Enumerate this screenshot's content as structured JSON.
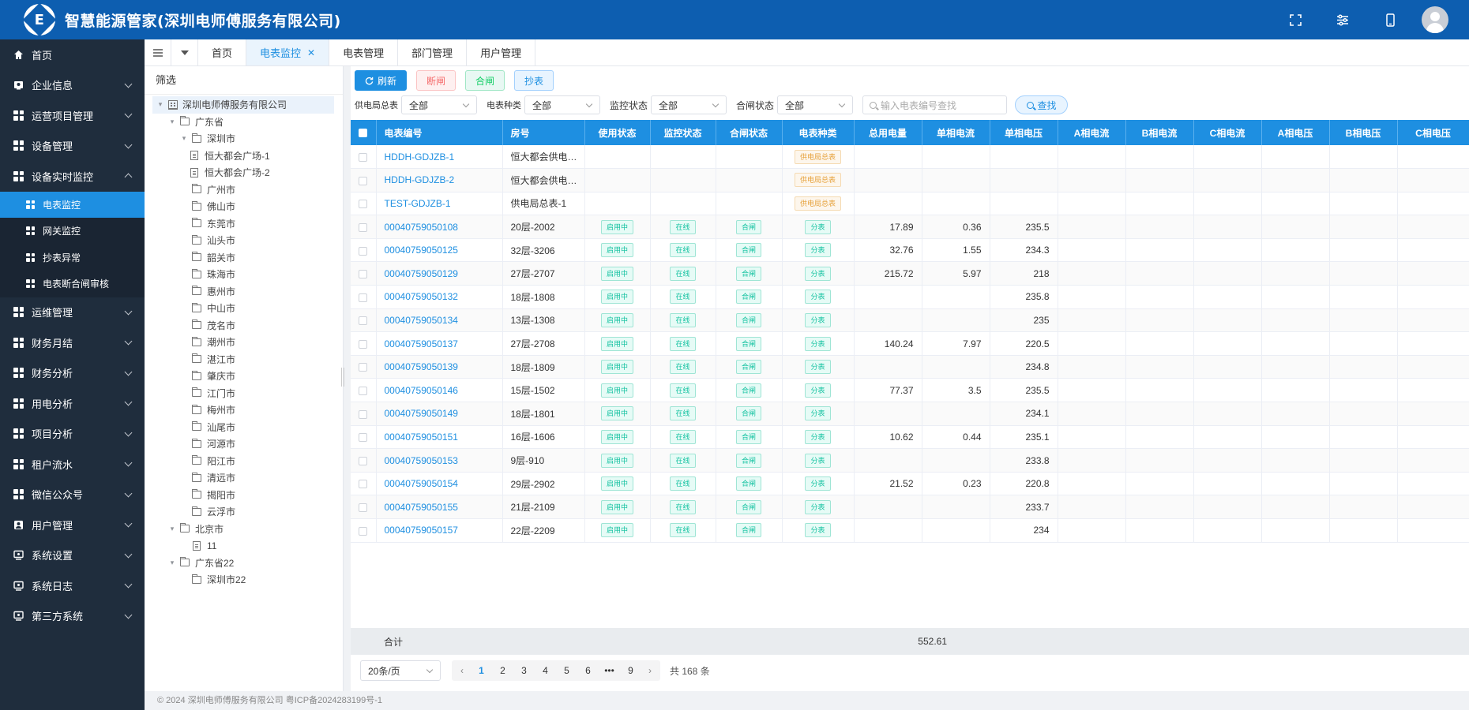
{
  "app": {
    "title": "智慧能源管家(深圳电师傅服务有限公司)",
    "logo_letter": "E"
  },
  "header_icons": [
    "fullscreen-icon",
    "settings-sliders-icon",
    "mobile-icon",
    "user-avatar"
  ],
  "sidebar": {
    "items": [
      {
        "label": "首页",
        "icon": "home-icon",
        "chevron": false
      },
      {
        "label": "企业信息",
        "icon": "building-icon",
        "chevron": true
      },
      {
        "label": "运营项目管理",
        "icon": "grid-icon",
        "chevron": true
      },
      {
        "label": "设备管理",
        "icon": "grid-icon",
        "chevron": true
      },
      {
        "label": "设备实时监控",
        "icon": "grid-icon",
        "chevron": true,
        "expanded": true
      },
      {
        "label": "运维管理",
        "icon": "grid-icon",
        "chevron": true
      },
      {
        "label": "财务月结",
        "icon": "grid-icon",
        "chevron": true
      },
      {
        "label": "财务分析",
        "icon": "grid-icon",
        "chevron": true
      },
      {
        "label": "用电分析",
        "icon": "grid-icon",
        "chevron": true
      },
      {
        "label": "项目分析",
        "icon": "grid-icon",
        "chevron": true
      },
      {
        "label": "租户流水",
        "icon": "grid-icon",
        "chevron": true
      },
      {
        "label": "微信公众号",
        "icon": "grid-icon",
        "chevron": true
      },
      {
        "label": "用户管理",
        "icon": "user-icon",
        "chevron": true
      },
      {
        "label": "系统设置",
        "icon": "monitor-icon",
        "chevron": true
      },
      {
        "label": "系统日志",
        "icon": "monitor-icon",
        "chevron": true
      },
      {
        "label": "第三方系统",
        "icon": "monitor-icon",
        "chevron": true
      }
    ],
    "subitems": [
      {
        "label": "电表监控",
        "active": true
      },
      {
        "label": "网关监控",
        "active": false
      },
      {
        "label": "抄表异常",
        "active": false
      },
      {
        "label": "电表断合闸审核",
        "active": false
      }
    ]
  },
  "tabs": [
    {
      "label": "首页",
      "active": false
    },
    {
      "label": "电表监控",
      "active": true,
      "closable": true
    },
    {
      "label": "电表管理",
      "active": false
    },
    {
      "label": "部门管理",
      "active": false
    },
    {
      "label": "用户管理",
      "active": false
    }
  ],
  "tree": {
    "title": "筛选",
    "nodes": [
      {
        "label": "深圳电师傅服务有限公司",
        "level": 0,
        "type": "building",
        "caret": "open",
        "selected": true
      },
      {
        "label": "广东省",
        "level": 1,
        "type": "folder",
        "caret": "open"
      },
      {
        "label": "深圳市",
        "level": 2,
        "type": "folder",
        "caret": "open"
      },
      {
        "label": "恒大都会广场-1",
        "level": 3,
        "type": "doc"
      },
      {
        "label": "恒大都会广场-2",
        "level": 3,
        "type": "doc"
      },
      {
        "label": "广州市",
        "level": 2,
        "type": "folder"
      },
      {
        "label": "佛山市",
        "level": 2,
        "type": "folder"
      },
      {
        "label": "东莞市",
        "level": 2,
        "type": "folder"
      },
      {
        "label": "汕头市",
        "level": 2,
        "type": "folder"
      },
      {
        "label": "韶关市",
        "level": 2,
        "type": "folder"
      },
      {
        "label": "珠海市",
        "level": 2,
        "type": "folder"
      },
      {
        "label": "惠州市",
        "level": 2,
        "type": "folder"
      },
      {
        "label": "中山市",
        "level": 2,
        "type": "folder"
      },
      {
        "label": "茂名市",
        "level": 2,
        "type": "folder"
      },
      {
        "label": "潮州市",
        "level": 2,
        "type": "folder"
      },
      {
        "label": "湛江市",
        "level": 2,
        "type": "folder"
      },
      {
        "label": "肇庆市",
        "level": 2,
        "type": "folder"
      },
      {
        "label": "江门市",
        "level": 2,
        "type": "folder"
      },
      {
        "label": "梅州市",
        "level": 2,
        "type": "folder"
      },
      {
        "label": "汕尾市",
        "level": 2,
        "type": "folder"
      },
      {
        "label": "河源市",
        "level": 2,
        "type": "folder"
      },
      {
        "label": "阳江市",
        "level": 2,
        "type": "folder"
      },
      {
        "label": "清远市",
        "level": 2,
        "type": "folder"
      },
      {
        "label": "揭阳市",
        "level": 2,
        "type": "folder"
      },
      {
        "label": "云浮市",
        "level": 2,
        "type": "folder"
      },
      {
        "label": "北京市",
        "level": 1,
        "type": "folder",
        "caret": "open"
      },
      {
        "label": "11",
        "level": 2,
        "type": "doc"
      },
      {
        "label": "广东省22",
        "level": 1,
        "type": "folder",
        "caret": "open"
      },
      {
        "label": "深圳市22",
        "level": 2,
        "type": "folder"
      }
    ]
  },
  "toolbar": {
    "refresh": "刷新",
    "cutoff": "断闸",
    "close": "合闸",
    "read": "抄表"
  },
  "filters": [
    {
      "label": "供电局总表",
      "value": "全部"
    },
    {
      "label": "电表种类",
      "value": "全部"
    },
    {
      "label": "监控状态",
      "value": "全部"
    },
    {
      "label": "合闸状态",
      "value": "全部"
    }
  ],
  "search": {
    "placeholder": "输入电表编号查找",
    "button": "查找"
  },
  "table": {
    "columns": [
      "电表编号",
      "房号",
      "使用状态",
      "监控状态",
      "合闸状态",
      "电表种类",
      "总用电量",
      "单相电流",
      "单相电压",
      "A相电流",
      "B相电流",
      "C相电流",
      "A相电压",
      "B相电压",
      "C相电压"
    ],
    "rows": [
      {
        "id": "HDDH-GDJZB-1",
        "room": "恒大都会供电局总表-1",
        "use": "",
        "mon": "",
        "sw": "",
        "kind": "供电局总表",
        "total": "",
        "i": "",
        "v": ""
      },
      {
        "id": "HDDH-GDJZB-2",
        "room": "恒大都会供电局总表-2",
        "use": "",
        "mon": "",
        "sw": "",
        "kind": "供电局总表",
        "total": "",
        "i": "",
        "v": ""
      },
      {
        "id": "TEST-GDJZB-1",
        "room": "供电局总表-1",
        "use": "",
        "mon": "",
        "sw": "",
        "kind": "供电局总表",
        "total": "",
        "i": "",
        "v": ""
      },
      {
        "id": "00040759050108",
        "room": "20层-2002",
        "use": "启用中",
        "mon": "在线",
        "sw": "合闸",
        "kind": "分表",
        "total": "17.89",
        "i": "0.36",
        "v": "235.5"
      },
      {
        "id": "00040759050125",
        "room": "32层-3206",
        "use": "启用中",
        "mon": "在线",
        "sw": "合闸",
        "kind": "分表",
        "total": "32.76",
        "i": "1.55",
        "v": "234.3"
      },
      {
        "id": "00040759050129",
        "room": "27层-2707",
        "use": "启用中",
        "mon": "在线",
        "sw": "合闸",
        "kind": "分表",
        "total": "215.72",
        "i": "5.97",
        "v": "218"
      },
      {
        "id": "00040759050132",
        "room": "18层-1808",
        "use": "启用中",
        "mon": "在线",
        "sw": "合闸",
        "kind": "分表",
        "total": "",
        "i": "",
        "v": "235.8"
      },
      {
        "id": "00040759050134",
        "room": "13层-1308",
        "use": "启用中",
        "mon": "在线",
        "sw": "合闸",
        "kind": "分表",
        "total": "",
        "i": "",
        "v": "235"
      },
      {
        "id": "00040759050137",
        "room": "27层-2708",
        "use": "启用中",
        "mon": "在线",
        "sw": "合闸",
        "kind": "分表",
        "total": "140.24",
        "i": "7.97",
        "v": "220.5"
      },
      {
        "id": "00040759050139",
        "room": "18层-1809",
        "use": "启用中",
        "mon": "在线",
        "sw": "合闸",
        "kind": "分表",
        "total": "",
        "i": "",
        "v": "234.8"
      },
      {
        "id": "00040759050146",
        "room": "15层-1502",
        "use": "启用中",
        "mon": "在线",
        "sw": "合闸",
        "kind": "分表",
        "total": "77.37",
        "i": "3.5",
        "v": "235.5"
      },
      {
        "id": "00040759050149",
        "room": "18层-1801",
        "use": "启用中",
        "mon": "在线",
        "sw": "合闸",
        "kind": "分表",
        "total": "",
        "i": "",
        "v": "234.1"
      },
      {
        "id": "00040759050151",
        "room": "16层-1606",
        "use": "启用中",
        "mon": "在线",
        "sw": "合闸",
        "kind": "分表",
        "total": "10.62",
        "i": "0.44",
        "v": "235.1"
      },
      {
        "id": "00040759050153",
        "room": "9层-910",
        "use": "启用中",
        "mon": "在线",
        "sw": "合闸",
        "kind": "分表",
        "total": "",
        "i": "",
        "v": "233.8"
      },
      {
        "id": "00040759050154",
        "room": "29层-2902",
        "use": "启用中",
        "mon": "在线",
        "sw": "合闸",
        "kind": "分表",
        "total": "21.52",
        "i": "0.23",
        "v": "220.8"
      },
      {
        "id": "00040759050155",
        "room": "21层-2109",
        "use": "启用中",
        "mon": "在线",
        "sw": "合闸",
        "kind": "分表",
        "total": "",
        "i": "",
        "v": "233.7"
      },
      {
        "id": "00040759050157",
        "room": "22层-2209",
        "use": "启用中",
        "mon": "在线",
        "sw": "合闸",
        "kind": "分表",
        "total": "",
        "i": "",
        "v": "234"
      }
    ],
    "summary": {
      "label": "合计",
      "total": "552.61"
    }
  },
  "pagination": {
    "page_size": "20条/页",
    "pages": [
      "1",
      "2",
      "3",
      "4",
      "5",
      "6",
      "•••",
      "9"
    ],
    "current": "1",
    "total": "共 168 条"
  },
  "footer": {
    "text": "© 2024 深圳电师傅服务有限公司 粤ICP备2024283199号-1"
  }
}
